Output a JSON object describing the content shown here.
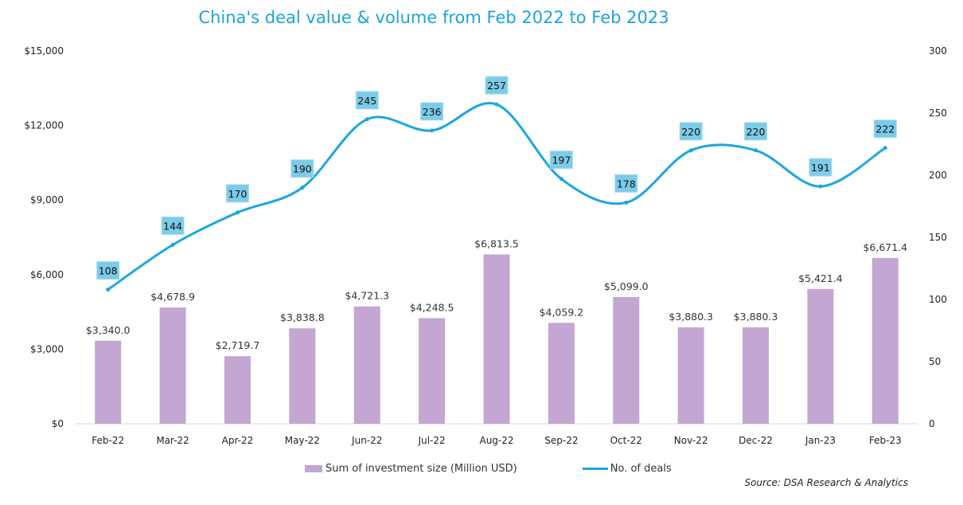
{
  "chart_data": {
    "type": "bar+line",
    "title": "China's deal value & volume from Feb 2022 to Feb 2023",
    "categories": [
      "Feb-22",
      "Mar-22",
      "Apr-22",
      "May-22",
      "Jun-22",
      "Jul-22",
      "Aug-22",
      "Sep-22",
      "Oct-22",
      "Nov-22",
      "Dec-22",
      "Jan-23",
      "Feb-23"
    ],
    "series": [
      {
        "name": "Sum of investment size (Million USD)",
        "type": "bar",
        "axis": "left",
        "color": "#c3a6d2",
        "values": [
          3340.0,
          4678.9,
          2719.7,
          3838.8,
          4721.3,
          4248.5,
          6813.5,
          4059.2,
          5099.0,
          3880.3,
          3880.3,
          5421.4,
          6671.4
        ],
        "labels": [
          "$3,340.0",
          "$4,678.9",
          "$2,719.7",
          "$3,838.8",
          "$4,721.3",
          "$4,248.5",
          "$6,813.5",
          "$4,059.2",
          "$5,099.0",
          "$3,880.3",
          "$3,880.3",
          "$5,421.4",
          "$6,671.4"
        ]
      },
      {
        "name": "No. of deals",
        "type": "line",
        "smooth": true,
        "axis": "right",
        "color": "#1aa7e0",
        "values": [
          108,
          144,
          170,
          190,
          245,
          236,
          257,
          197,
          178,
          220,
          220,
          191,
          222
        ]
      }
    ],
    "left_axis": {
      "ylim": [
        0,
        15000
      ],
      "ticks": [
        "$0",
        "$3,000",
        "$6,000",
        "$9,000",
        "$12,000",
        "$15,000"
      ],
      "tick_values": [
        0,
        3000,
        6000,
        9000,
        12000,
        15000
      ]
    },
    "right_axis": {
      "ylim": [
        0,
        300
      ],
      "ticks": [
        "0",
        "50",
        "100",
        "150",
        "200",
        "250",
        "300"
      ],
      "tick_values": [
        0,
        50,
        100,
        150,
        200,
        250,
        300
      ]
    },
    "grid": false,
    "legend": "bottom",
    "source": "Source: DSA Research & Analytics"
  }
}
